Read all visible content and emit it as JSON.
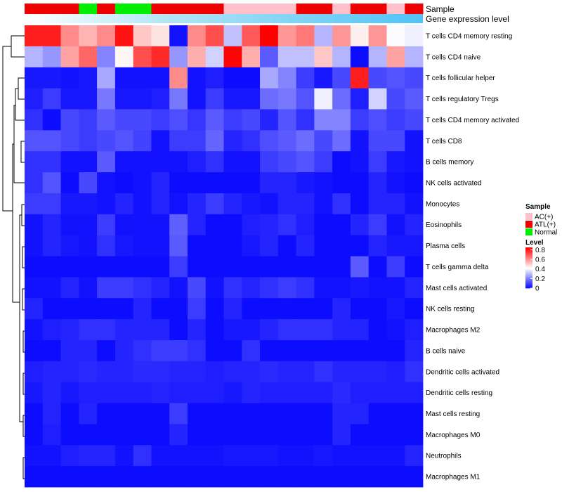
{
  "chart_data": {
    "type": "heatmap",
    "annotation_labels": {
      "sample": "Sample",
      "gene": "Gene expression level"
    },
    "sample_legend": {
      "title": "Sample",
      "entries": [
        {
          "label": "AC(+)",
          "color": "#ffc0cb"
        },
        {
          "label": "ATL(+)",
          "color": "#ee0000"
        },
        {
          "label": "Normal",
          "color": "#00ee00"
        }
      ]
    },
    "level_legend": {
      "title": "Level",
      "ticks": [
        "0.8",
        "0.6",
        "0.4",
        "0.2",
        "0"
      ],
      "tick_values": [
        0.8,
        0.6,
        0.4,
        0.2,
        0
      ],
      "range": [
        0,
        0.85
      ]
    },
    "colors": {
      "low": "#0000ff",
      "mid": "#ffffff",
      "high": "#ff0000",
      "gene_bar": "#b3e5f5",
      "gene_bar_end": "#4fc3f7"
    },
    "sample_groups": [
      "ATL(+)",
      "ATL(+)",
      "ATL(+)",
      "Normal",
      "ATL(+)",
      "Normal",
      "Normal",
      "ATL(+)",
      "ATL(+)",
      "ATL(+)",
      "ATL(+)",
      "AC(+)",
      "AC(+)",
      "AC(+)",
      "AC(+)",
      "ATL(+)",
      "ATL(+)",
      "AC(+)",
      "ATL(+)",
      "ATL(+)",
      "AC(+)",
      "ATL(+)"
    ],
    "rows": [
      "T cells CD4 memory resting",
      "T cells CD4 naive",
      "T cells follicular helper",
      "T cells regulatory  Tregs",
      "T cells CD4 memory activated",
      "T cells CD8",
      "B cells memory",
      "NK cells activated",
      "Monocytes",
      "Eosinophils",
      "Plasma cells",
      "T cells gamma delta",
      "Mast cells activated",
      "NK cells resting",
      "Macrophages M2",
      "B cells naive",
      "Dendritic cells activated",
      "Dendritic cells resting",
      "Mast cells resting",
      "Macrophages M0",
      "Neutrophils",
      "Macrophages M1"
    ],
    "values": [
      [
        0.8,
        0.8,
        0.62,
        0.55,
        0.62,
        0.82,
        0.52,
        0.47,
        0.03,
        0.62,
        0.72,
        0.32,
        0.7,
        0.85,
        0.6,
        0.65,
        0.3,
        0.6,
        0.45,
        0.6,
        0.42,
        0.4
      ],
      [
        0.3,
        0.25,
        0.58,
        0.68,
        0.22,
        0.44,
        0.72,
        0.78,
        0.25,
        0.56,
        0.35,
        0.84,
        0.56,
        0.15,
        0.32,
        0.32,
        0.52,
        0.3,
        0.02,
        0.3,
        0.58,
        0.3
      ],
      [
        0.04,
        0.04,
        0.03,
        0.04,
        0.28,
        0.03,
        0.03,
        0.03,
        0.62,
        0.03,
        0.05,
        0.02,
        0.02,
        0.28,
        0.22,
        0.1,
        0.04,
        0.12,
        0.8,
        0.12,
        0.14,
        0.12
      ],
      [
        0.05,
        0.1,
        0.04,
        0.04,
        0.2,
        0.04,
        0.04,
        0.05,
        0.2,
        0.03,
        0.1,
        0.04,
        0.04,
        0.18,
        0.2,
        0.14,
        0.4,
        0.18,
        0.05,
        0.35,
        0.12,
        0.15
      ],
      [
        0.08,
        0.02,
        0.12,
        0.1,
        0.15,
        0.12,
        0.12,
        0.1,
        0.13,
        0.09,
        0.15,
        0.1,
        0.12,
        0.06,
        0.14,
        0.08,
        0.22,
        0.22,
        0.1,
        0.13,
        0.1,
        0.12
      ],
      [
        0.14,
        0.14,
        0.12,
        0.1,
        0.12,
        0.14,
        0.11,
        0.03,
        0.1,
        0.1,
        0.17,
        0.06,
        0.08,
        0.13,
        0.15,
        0.18,
        0.12,
        0.18,
        0.03,
        0.12,
        0.12,
        0.03
      ],
      [
        0.08,
        0.08,
        0.03,
        0.03,
        0.15,
        0.03,
        0.03,
        0.03,
        0.03,
        0.05,
        0.08,
        0.03,
        0.03,
        0.1,
        0.12,
        0.14,
        0.1,
        0.02,
        0.03,
        0.1,
        0.04,
        0.03
      ],
      [
        0.08,
        0.14,
        0.02,
        0.12,
        0.03,
        0.02,
        0.03,
        0.06,
        0.02,
        0.02,
        0.02,
        0.02,
        0.02,
        0.06,
        0.06,
        0.04,
        0.03,
        0.02,
        0.02,
        0.06,
        0.03,
        0.02
      ],
      [
        0.1,
        0.1,
        0.04,
        0.04,
        0.03,
        0.06,
        0.03,
        0.06,
        0.03,
        0.06,
        0.1,
        0.06,
        0.04,
        0.03,
        0.06,
        0.06,
        0.03,
        0.08,
        0.02,
        0.06,
        0.06,
        0.03
      ],
      [
        0.03,
        0.06,
        0.03,
        0.03,
        0.1,
        0.03,
        0.03,
        0.03,
        0.16,
        0.06,
        0.02,
        0.02,
        0.05,
        0.06,
        0.08,
        0.05,
        0.02,
        0.02,
        0.06,
        0.1,
        0.03,
        0.06
      ],
      [
        0.03,
        0.06,
        0.04,
        0.03,
        0.08,
        0.04,
        0.03,
        0.03,
        0.15,
        0.02,
        0.02,
        0.02,
        0.04,
        0.06,
        0.02,
        0.06,
        0.02,
        0.02,
        0.02,
        0.06,
        0.04,
        0.04
      ],
      [
        0.02,
        0.02,
        0.02,
        0.02,
        0.02,
        0.02,
        0.02,
        0.02,
        0.1,
        0.02,
        0.02,
        0.02,
        0.02,
        0.02,
        0.02,
        0.02,
        0.02,
        0.02,
        0.15,
        0.02,
        0.1,
        0.02
      ],
      [
        0.03,
        0.03,
        0.06,
        0.03,
        0.1,
        0.1,
        0.08,
        0.06,
        0.03,
        0.12,
        0.03,
        0.08,
        0.06,
        0.08,
        0.1,
        0.08,
        0.03,
        0.03,
        0.04,
        0.03,
        0.03,
        0.06
      ],
      [
        0.06,
        0.02,
        0.02,
        0.02,
        0.02,
        0.02,
        0.06,
        0.02,
        0.02,
        0.1,
        0.02,
        0.06,
        0.02,
        0.02,
        0.02,
        0.02,
        0.02,
        0.06,
        0.02,
        0.02,
        0.04,
        0.02
      ],
      [
        0.03,
        0.05,
        0.06,
        0.08,
        0.08,
        0.06,
        0.06,
        0.06,
        0.02,
        0.06,
        0.02,
        0.04,
        0.04,
        0.06,
        0.08,
        0.08,
        0.08,
        0.06,
        0.06,
        0.02,
        0.03,
        0.05
      ],
      [
        0.02,
        0.02,
        0.06,
        0.06,
        0.02,
        0.06,
        0.08,
        0.1,
        0.1,
        0.08,
        0.02,
        0.02,
        0.08,
        0.02,
        0.02,
        0.02,
        0.02,
        0.02,
        0.02,
        0.02,
        0.02,
        0.06
      ],
      [
        0.05,
        0.06,
        0.06,
        0.07,
        0.06,
        0.06,
        0.07,
        0.07,
        0.06,
        0.06,
        0.05,
        0.06,
        0.06,
        0.07,
        0.06,
        0.06,
        0.08,
        0.06,
        0.06,
        0.06,
        0.05,
        0.08
      ],
      [
        0.04,
        0.06,
        0.04,
        0.05,
        0.05,
        0.05,
        0.05,
        0.06,
        0.05,
        0.05,
        0.05,
        0.04,
        0.06,
        0.05,
        0.05,
        0.05,
        0.05,
        0.07,
        0.05,
        0.05,
        0.05,
        0.05
      ],
      [
        0.02,
        0.06,
        0.02,
        0.06,
        0.02,
        0.02,
        0.02,
        0.02,
        0.1,
        0.02,
        0.02,
        0.02,
        0.02,
        0.02,
        0.02,
        0.02,
        0.02,
        0.06,
        0.06,
        0.02,
        0.02,
        0.02
      ],
      [
        0.02,
        0.05,
        0.02,
        0.02,
        0.02,
        0.02,
        0.02,
        0.02,
        0.06,
        0.02,
        0.02,
        0.02,
        0.02,
        0.02,
        0.02,
        0.02,
        0.02,
        0.06,
        0.02,
        0.02,
        0.02,
        0.02
      ],
      [
        0.03,
        0.03,
        0.05,
        0.06,
        0.06,
        0.03,
        0.08,
        0.03,
        0.03,
        0.03,
        0.03,
        0.04,
        0.04,
        0.04,
        0.03,
        0.03,
        0.04,
        0.03,
        0.03,
        0.03,
        0.03,
        0.06
      ],
      [
        0.02,
        0.02,
        0.02,
        0.02,
        0.02,
        0.02,
        0.02,
        0.02,
        0.02,
        0.02,
        0.02,
        0.02,
        0.02,
        0.02,
        0.02,
        0.02,
        0.02,
        0.02,
        0.02,
        0.02,
        0.02,
        0.02
      ]
    ]
  }
}
